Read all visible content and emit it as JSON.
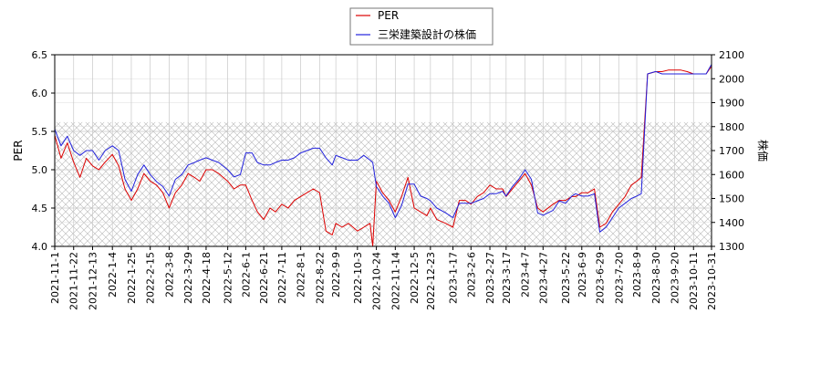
{
  "chart_data": {
    "type": "line",
    "title": "",
    "xlabel": "",
    "ylabel_left": "PER",
    "ylabel_right": "株価",
    "ylim_left": [
      4.0,
      6.5
    ],
    "ylim_right": [
      1300,
      2100
    ],
    "yticks_left": [
      "4.0",
      "4.5",
      "5.0",
      "5.5",
      "6.0",
      "6.5"
    ],
    "yticks_right": [
      "1300",
      "1400",
      "1500",
      "1600",
      "1700",
      "1800",
      "1900",
      "2000",
      "2100"
    ],
    "x_tick_labels": [
      "2021-11-1",
      "2021-11-22",
      "2021-12-13",
      "2022-1-4",
      "2022-1-25",
      "2022-2-15",
      "2022-3-8",
      "2022-3-29",
      "2022-4-18",
      "2022-5-12",
      "2022-6-1",
      "2022-6-21",
      "2022-7-11",
      "2022-8-1",
      "2022-8-22",
      "2022-9-9",
      "2022-10-3",
      "2022-10-24",
      "2022-11-14",
      "2022-12-5",
      "2022-12-23",
      "2023-1-17",
      "2023-2-6",
      "2023-2-27",
      "2023-3-17",
      "2023-4-7",
      "2023-4-27",
      "2023-5-22",
      "2023-6-9",
      "2023-6-29",
      "2023-7-20",
      "2023-8-9",
      "2023-8-30",
      "2023-9-20",
      "2023-10-11",
      "2023-10-31"
    ],
    "grid": true,
    "legend_position": "top-center",
    "hatched_band_left": [
      4.0,
      5.62
    ],
    "series": [
      {
        "name": "PER",
        "axis": "left",
        "color": "#dd0000",
        "x": [
          "2021-11-1",
          "2021-11-8",
          "2021-11-15",
          "2021-11-22",
          "2021-11-29",
          "2021-12-6",
          "2021-12-13",
          "2021-12-20",
          "2021-12-27",
          "2022-1-4",
          "2022-1-11",
          "2022-1-18",
          "2022-1-25",
          "2022-2-1",
          "2022-2-8",
          "2022-2-15",
          "2022-2-22",
          "2022-3-1",
          "2022-3-8",
          "2022-3-15",
          "2022-3-22",
          "2022-3-29",
          "2022-4-5",
          "2022-4-11",
          "2022-4-18",
          "2022-4-25",
          "2022-5-2",
          "2022-5-12",
          "2022-5-19",
          "2022-5-26",
          "2022-6-1",
          "2022-6-8",
          "2022-6-14",
          "2022-6-21",
          "2022-6-28",
          "2022-7-4",
          "2022-7-11",
          "2022-7-18",
          "2022-7-25",
          "2022-8-1",
          "2022-8-8",
          "2022-8-15",
          "2022-8-22",
          "2022-8-29",
          "2022-9-5",
          "2022-9-9",
          "2022-9-16",
          "2022-9-23",
          "2022-10-3",
          "2022-10-10",
          "2022-10-17",
          "2022-10-20",
          "2022-10-24",
          "2022-10-31",
          "2022-11-7",
          "2022-11-14",
          "2022-11-21",
          "2022-11-28",
          "2022-12-5",
          "2022-12-12",
          "2022-12-19",
          "2022-12-23",
          "2022-12-30",
          "2023-1-9",
          "2023-1-17",
          "2023-1-24",
          "2023-1-31",
          "2023-2-6",
          "2023-2-13",
          "2023-2-20",
          "2023-2-27",
          "2023-3-6",
          "2023-3-13",
          "2023-3-17",
          "2023-3-24",
          "2023-3-31",
          "2023-4-7",
          "2023-4-14",
          "2023-4-21",
          "2023-4-27",
          "2023-5-8",
          "2023-5-15",
          "2023-5-22",
          "2023-5-29",
          "2023-6-2",
          "2023-6-9",
          "2023-6-16",
          "2023-6-23",
          "2023-6-29",
          "2023-7-6",
          "2023-7-13",
          "2023-7-20",
          "2023-7-27",
          "2023-8-3",
          "2023-8-9",
          "2023-8-14",
          "2023-8-21",
          "2023-8-30",
          "2023-9-6",
          "2023-9-13",
          "2023-9-20",
          "2023-9-27",
          "2023-10-4",
          "2023-10-11",
          "2023-10-18",
          "2023-10-25",
          "2023-10-31"
        ],
        "values": [
          5.45,
          5.15,
          5.35,
          5.1,
          4.9,
          5.15,
          5.05,
          5.0,
          5.1,
          5.2,
          5.05,
          4.75,
          4.6,
          4.75,
          4.95,
          4.85,
          4.8,
          4.7,
          4.5,
          4.7,
          4.8,
          4.95,
          4.9,
          4.85,
          5.0,
          5.0,
          4.95,
          4.85,
          4.75,
          4.8,
          4.8,
          4.6,
          4.45,
          4.35,
          4.5,
          4.45,
          4.55,
          4.5,
          4.6,
          4.65,
          4.7,
          4.75,
          4.7,
          4.2,
          4.15,
          4.3,
          4.25,
          4.3,
          4.2,
          4.25,
          4.3,
          4.0,
          4.85,
          4.7,
          4.6,
          4.45,
          4.65,
          4.9,
          4.5,
          4.45,
          4.4,
          4.5,
          4.35,
          4.3,
          4.25,
          4.6,
          4.6,
          4.55,
          4.65,
          4.7,
          4.8,
          4.75,
          4.75,
          4.65,
          4.75,
          4.85,
          4.95,
          4.8,
          4.5,
          4.45,
          4.55,
          4.6,
          4.6,
          4.65,
          4.65,
          4.7,
          4.7,
          4.75,
          4.25,
          4.3,
          4.45,
          4.55,
          4.65,
          4.8,
          4.85,
          4.9,
          6.25,
          6.28,
          6.28,
          6.3,
          6.3,
          6.3,
          6.28,
          6.25,
          6.25,
          6.25,
          6.35
        ]
      },
      {
        "name": "三栄建築設計の株価",
        "axis": "right",
        "color": "#2222dd",
        "x": [
          "2021-11-1",
          "2021-11-8",
          "2021-11-15",
          "2021-11-22",
          "2021-11-29",
          "2021-12-6",
          "2021-12-13",
          "2021-12-20",
          "2021-12-27",
          "2022-1-4",
          "2022-1-11",
          "2022-1-18",
          "2022-1-25",
          "2022-2-1",
          "2022-2-8",
          "2022-2-15",
          "2022-2-22",
          "2022-3-1",
          "2022-3-8",
          "2022-3-15",
          "2022-3-22",
          "2022-3-29",
          "2022-4-5",
          "2022-4-11",
          "2022-4-18",
          "2022-4-25",
          "2022-5-2",
          "2022-5-12",
          "2022-5-19",
          "2022-5-26",
          "2022-6-1",
          "2022-6-8",
          "2022-6-14",
          "2022-6-21",
          "2022-6-28",
          "2022-7-4",
          "2022-7-11",
          "2022-7-18",
          "2022-7-25",
          "2022-8-1",
          "2022-8-8",
          "2022-8-15",
          "2022-8-22",
          "2022-8-29",
          "2022-9-5",
          "2022-9-9",
          "2022-9-16",
          "2022-9-23",
          "2022-10-3",
          "2022-10-10",
          "2022-10-17",
          "2022-10-20",
          "2022-10-24",
          "2022-10-31",
          "2022-11-7",
          "2022-11-14",
          "2022-11-21",
          "2022-11-28",
          "2022-12-5",
          "2022-12-12",
          "2022-12-19",
          "2022-12-23",
          "2022-12-30",
          "2023-1-9",
          "2023-1-17",
          "2023-1-24",
          "2023-1-31",
          "2023-2-6",
          "2023-2-13",
          "2023-2-20",
          "2023-2-27",
          "2023-3-6",
          "2023-3-13",
          "2023-3-17",
          "2023-3-24",
          "2023-3-31",
          "2023-4-7",
          "2023-4-14",
          "2023-4-21",
          "2023-4-27",
          "2023-5-8",
          "2023-5-15",
          "2023-5-22",
          "2023-5-29",
          "2023-6-2",
          "2023-6-9",
          "2023-6-16",
          "2023-6-23",
          "2023-6-29",
          "2023-7-6",
          "2023-7-13",
          "2023-7-20",
          "2023-7-27",
          "2023-8-3",
          "2023-8-9",
          "2023-8-14",
          "2023-8-21",
          "2023-8-30",
          "2023-9-6",
          "2023-9-13",
          "2023-9-20",
          "2023-9-27",
          "2023-10-4",
          "2023-10-11",
          "2023-10-18",
          "2023-10-25",
          "2023-10-31"
        ],
        "values": [
          1790,
          1720,
          1760,
          1700,
          1680,
          1700,
          1700,
          1660,
          1700,
          1720,
          1700,
          1580,
          1530,
          1600,
          1640,
          1600,
          1570,
          1550,
          1510,
          1580,
          1600,
          1640,
          1650,
          1660,
          1670,
          1660,
          1650,
          1620,
          1590,
          1600,
          1690,
          1690,
          1650,
          1640,
          1640,
          1650,
          1660,
          1660,
          1670,
          1690,
          1700,
          1710,
          1710,
          1670,
          1640,
          1680,
          1670,
          1660,
          1660,
          1680,
          1660,
          1650,
          1550,
          1510,
          1480,
          1420,
          1470,
          1560,
          1560,
          1510,
          1500,
          1490,
          1460,
          1440,
          1420,
          1480,
          1480,
          1480,
          1490,
          1500,
          1520,
          1520,
          1530,
          1510,
          1550,
          1580,
          1620,
          1580,
          1440,
          1430,
          1450,
          1490,
          1480,
          1510,
          1520,
          1510,
          1510,
          1520,
          1360,
          1380,
          1420,
          1460,
          1480,
          1500,
          1510,
          1520,
          2020,
          2030,
          2020,
          2020,
          2020,
          2020,
          2020,
          2020,
          2020,
          2020,
          2060
        ]
      }
    ]
  }
}
